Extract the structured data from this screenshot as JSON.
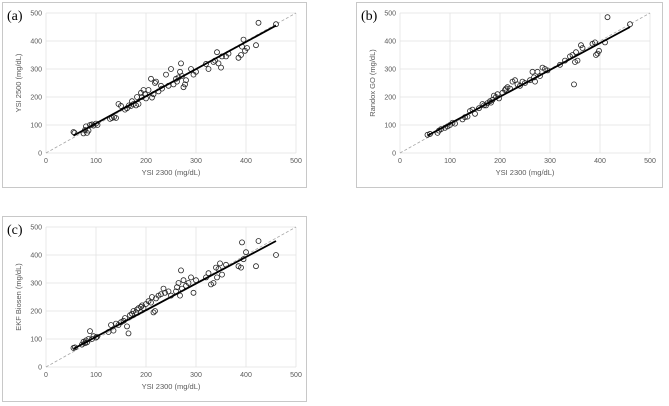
{
  "chart_data": [
    {
      "panel_label": "(a)",
      "type": "scatter",
      "xlabel": "YSI 2300 (mg/dL)",
      "ylabel": "YSI 2500 (mg/dL)",
      "xlim": [
        0,
        500
      ],
      "ylim": [
        0,
        500
      ],
      "xticks": [
        0,
        100,
        200,
        300,
        400,
        500
      ],
      "yticks": [
        0,
        100,
        200,
        300,
        400,
        500
      ],
      "identity_line": true,
      "fit": {
        "x": [
          55,
          460
        ],
        "y": [
          62,
          455
        ]
      },
      "points": [
        [
          55,
          75
        ],
        [
          57,
          72
        ],
        [
          75,
          70
        ],
        [
          78,
          82
        ],
        [
          80,
          95
        ],
        [
          82,
          72
        ],
        [
          85,
          80
        ],
        [
          88,
          100
        ],
        [
          92,
          102
        ],
        [
          95,
          98
        ],
        [
          100,
          105
        ],
        [
          103,
          100
        ],
        [
          128,
          122
        ],
        [
          132,
          125
        ],
        [
          136,
          128
        ],
        [
          140,
          125
        ],
        [
          145,
          175
        ],
        [
          150,
          168
        ],
        [
          158,
          155
        ],
        [
          162,
          160
        ],
        [
          166,
          170
        ],
        [
          170,
          168
        ],
        [
          172,
          185
        ],
        [
          175,
          175
        ],
        [
          180,
          170
        ],
        [
          182,
          200
        ],
        [
          185,
          175
        ],
        [
          190,
          215
        ],
        [
          192,
          200
        ],
        [
          195,
          225
        ],
        [
          198,
          210
        ],
        [
          200,
          195
        ],
        [
          205,
          225
        ],
        [
          210,
          265
        ],
        [
          212,
          198
        ],
        [
          215,
          210
        ],
        [
          218,
          250
        ],
        [
          220,
          255
        ],
        [
          225,
          220
        ],
        [
          230,
          240
        ],
        [
          232,
          230
        ],
        [
          240,
          280
        ],
        [
          245,
          240
        ],
        [
          250,
          300
        ],
        [
          255,
          245
        ],
        [
          260,
          265
        ],
        [
          262,
          255
        ],
        [
          265,
          270
        ],
        [
          268,
          290
        ],
        [
          270,
          320
        ],
        [
          272,
          275
        ],
        [
          275,
          235
        ],
        [
          278,
          245
        ],
        [
          280,
          260
        ],
        [
          290,
          300
        ],
        [
          295,
          280
        ],
        [
          300,
          290
        ],
        [
          320,
          318
        ],
        [
          325,
          300
        ],
        [
          335,
          325
        ],
        [
          338,
          330
        ],
        [
          342,
          360
        ],
        [
          345,
          320
        ],
        [
          350,
          305
        ],
        [
          352,
          345
        ],
        [
          360,
          345
        ],
        [
          365,
          355
        ],
        [
          385,
          340
        ],
        [
          390,
          350
        ],
        [
          392,
          380
        ],
        [
          395,
          405
        ],
        [
          398,
          365
        ],
        [
          402,
          375
        ],
        [
          420,
          385
        ],
        [
          425,
          465
        ],
        [
          460,
          460
        ]
      ]
    },
    {
      "panel_label": "(b)",
      "type": "scatter",
      "xlabel": "YSI 2300 (mg/dL)",
      "ylabel": "Randox GO (mg/dL)",
      "xlim": [
        0,
        500
      ],
      "ylim": [
        0,
        500
      ],
      "xticks": [
        0,
        100,
        200,
        300,
        400,
        500
      ],
      "yticks": [
        0,
        100,
        200,
        300,
        400,
        500
      ],
      "identity_line": true,
      "fit": {
        "x": [
          55,
          460
        ],
        "y": [
          62,
          450
        ]
      },
      "points": [
        [
          55,
          65
        ],
        [
          60,
          68
        ],
        [
          75,
          72
        ],
        [
          78,
          80
        ],
        [
          82,
          85
        ],
        [
          90,
          90
        ],
        [
          95,
          95
        ],
        [
          100,
          100
        ],
        [
          105,
          108
        ],
        [
          110,
          105
        ],
        [
          125,
          120
        ],
        [
          130,
          128
        ],
        [
          135,
          130
        ],
        [
          140,
          150
        ],
        [
          145,
          155
        ],
        [
          150,
          140
        ],
        [
          158,
          160
        ],
        [
          165,
          175
        ],
        [
          168,
          170
        ],
        [
          172,
          170
        ],
        [
          175,
          178
        ],
        [
          180,
          185
        ],
        [
          182,
          180
        ],
        [
          185,
          190
        ],
        [
          188,
          205
        ],
        [
          192,
          200
        ],
        [
          195,
          210
        ],
        [
          198,
          195
        ],
        [
          205,
          215
        ],
        [
          210,
          225
        ],
        [
          212,
          230
        ],
        [
          215,
          235
        ],
        [
          220,
          230
        ],
        [
          225,
          255
        ],
        [
          230,
          260
        ],
        [
          235,
          245
        ],
        [
          240,
          240
        ],
        [
          245,
          255
        ],
        [
          250,
          250
        ],
        [
          260,
          260
        ],
        [
          265,
          290
        ],
        [
          268,
          270
        ],
        [
          270,
          255
        ],
        [
          275,
          290
        ],
        [
          280,
          275
        ],
        [
          285,
          305
        ],
        [
          290,
          300
        ],
        [
          295,
          295
        ],
        [
          320,
          315
        ],
        [
          330,
          330
        ],
        [
          340,
          345
        ],
        [
          345,
          350
        ],
        [
          348,
          245
        ],
        [
          350,
          325
        ],
        [
          352,
          360
        ],
        [
          355,
          330
        ],
        [
          362,
          385
        ],
        [
          365,
          375
        ],
        [
          385,
          390
        ],
        [
          390,
          395
        ],
        [
          392,
          350
        ],
        [
          395,
          355
        ],
        [
          398,
          365
        ],
        [
          410,
          395
        ],
        [
          415,
          485
        ],
        [
          460,
          460
        ]
      ]
    },
    {
      "panel_label": "(c)",
      "type": "scatter",
      "xlabel": "YSI 2300 (mg/dL)",
      "ylabel": "EKF Biosen (mg/dL)",
      "xlim": [
        0,
        500
      ],
      "ylim": [
        0,
        500
      ],
      "xticks": [
        0,
        100,
        200,
        300,
        400,
        500
      ],
      "yticks": [
        0,
        100,
        200,
        300,
        400,
        500
      ],
      "identity_line": true,
      "fit": {
        "x": [
          55,
          460
        ],
        "y": [
          65,
          450
        ]
      },
      "points": [
        [
          55,
          68
        ],
        [
          58,
          70
        ],
        [
          72,
          80
        ],
        [
          75,
          90
        ],
        [
          78,
          85
        ],
        [
          80,
          95
        ],
        [
          82,
          88
        ],
        [
          85,
          100
        ],
        [
          88,
          128
        ],
        [
          92,
          100
        ],
        [
          95,
          110
        ],
        [
          100,
          105
        ],
        [
          102,
          108
        ],
        [
          125,
          125
        ],
        [
          130,
          150
        ],
        [
          135,
          130
        ],
        [
          140,
          155
        ],
        [
          145,
          150
        ],
        [
          150,
          160
        ],
        [
          155,
          165
        ],
        [
          158,
          175
        ],
        [
          162,
          145
        ],
        [
          165,
          120
        ],
        [
          168,
          185
        ],
        [
          172,
          190
        ],
        [
          175,
          200
        ],
        [
          180,
          195
        ],
        [
          182,
          205
        ],
        [
          185,
          210
        ],
        [
          190,
          215
        ],
        [
          192,
          220
        ],
        [
          195,
          210
        ],
        [
          200,
          225
        ],
        [
          205,
          235
        ],
        [
          210,
          230
        ],
        [
          212,
          250
        ],
        [
          215,
          195
        ],
        [
          218,
          200
        ],
        [
          220,
          245
        ],
        [
          225,
          255
        ],
        [
          230,
          260
        ],
        [
          235,
          280
        ],
        [
          238,
          265
        ],
        [
          245,
          270
        ],
        [
          250,
          255
        ],
        [
          260,
          270
        ],
        [
          262,
          285
        ],
        [
          265,
          300
        ],
        [
          268,
          255
        ],
        [
          270,
          345
        ],
        [
          272,
          280
        ],
        [
          275,
          310
        ],
        [
          280,
          290
        ],
        [
          285,
          300
        ],
        [
          290,
          320
        ],
        [
          295,
          265
        ],
        [
          300,
          310
        ],
        [
          320,
          320
        ],
        [
          325,
          335
        ],
        [
          330,
          295
        ],
        [
          335,
          300
        ],
        [
          340,
          355
        ],
        [
          342,
          320
        ],
        [
          345,
          350
        ],
        [
          348,
          370
        ],
        [
          352,
          330
        ],
        [
          360,
          365
        ],
        [
          385,
          360
        ],
        [
          390,
          355
        ],
        [
          392,
          445
        ],
        [
          395,
          385
        ],
        [
          400,
          410
        ],
        [
          420,
          360
        ],
        [
          425,
          450
        ],
        [
          460,
          400
        ]
      ]
    }
  ]
}
